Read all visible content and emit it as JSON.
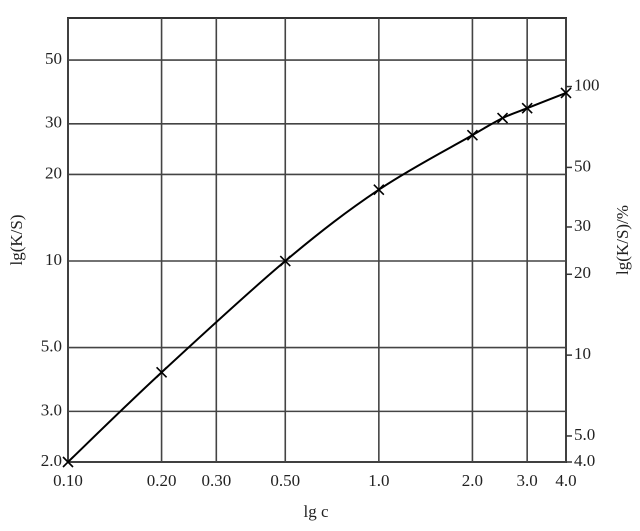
{
  "chart_data": {
    "type": "line",
    "x_label": "lg c",
    "y_label": "lg(K/S)",
    "y2_label": "lg(K/S)/%",
    "x": [
      0.1,
      0.2,
      0.5,
      1.0,
      2.0,
      2.5,
      3.0,
      4.0
    ],
    "values": [
      2.0,
      4.1,
      10,
      17.7,
      27.4,
      31.4,
      34,
      38.4
    ],
    "color": "#000000",
    "xscale": "log",
    "yscale": "log",
    "y2scale": "log",
    "xlim": [
      0.1,
      4.0
    ],
    "ylim": [
      2.0,
      70
    ],
    "y2lim": [
      4.0,
      180
    ],
    "xticks": [
      {
        "value": 0.1,
        "label": "0.10"
      },
      {
        "value": 0.2,
        "label": "0.20"
      },
      {
        "value": 0.3,
        "label": "0.30"
      },
      {
        "value": 0.5,
        "label": "0.50"
      },
      {
        "value": 1,
        "label": "1.0"
      },
      {
        "value": 2,
        "label": "2.0"
      },
      {
        "value": 3,
        "label": "3.0"
      },
      {
        "value": 4,
        "label": "4.0"
      }
    ],
    "yticks": [
      {
        "value": 2,
        "label": "2.0"
      },
      {
        "value": 3,
        "label": "3.0"
      },
      {
        "value": 5,
        "label": "5.0"
      },
      10,
      20,
      30,
      50
    ],
    "y2ticks": [
      {
        "value": 4,
        "label": "4.0"
      },
      {
        "value": 5,
        "label": "5.0"
      },
      10,
      20,
      30,
      50,
      100
    ],
    "grid": true
  }
}
